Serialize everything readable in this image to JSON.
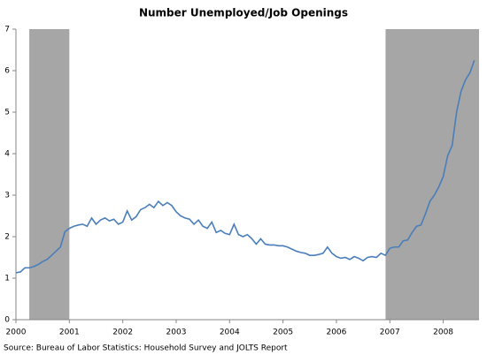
{
  "chart_data": {
    "type": "line",
    "title": "Number Unemployed/Job Openings",
    "source": "Source: Bureau of Labor Statistics:  Household Survey and JOLTS Report",
    "x": [
      2000,
      2000.083,
      2000.167,
      2000.25,
      2000.333,
      2000.417,
      2000.5,
      2000.583,
      2000.667,
      2000.75,
      2000.833,
      2000.917,
      2001,
      2001.083,
      2001.167,
      2001.25,
      2001.333,
      2001.417,
      2001.5,
      2001.583,
      2001.667,
      2001.75,
      2001.833,
      2001.917,
      2002,
      2002.083,
      2002.167,
      2002.25,
      2002.333,
      2002.417,
      2002.5,
      2002.583,
      2002.667,
      2002.75,
      2002.833,
      2002.917,
      2003,
      2003.083,
      2003.167,
      2003.25,
      2003.333,
      2003.417,
      2003.5,
      2003.583,
      2003.667,
      2003.75,
      2003.833,
      2003.917,
      2004,
      2004.083,
      2004.167,
      2004.25,
      2004.333,
      2004.417,
      2004.5,
      2004.583,
      2004.667,
      2004.75,
      2004.833,
      2004.917,
      2005,
      2005.083,
      2005.167,
      2005.25,
      2005.333,
      2005.417,
      2005.5,
      2005.583,
      2005.667,
      2005.75,
      2005.833,
      2005.917,
      2006,
      2006.083,
      2006.167,
      2006.25,
      2006.333,
      2006.417,
      2006.5,
      2006.583,
      2006.667,
      2006.75,
      2006.833,
      2006.917,
      2007,
      2007.083,
      2007.167,
      2007.25,
      2007.333,
      2007.417,
      2007.5,
      2007.583,
      2007.667,
      2007.75,
      2007.833,
      2007.917,
      2008,
      2008.083,
      2008.167,
      2008.25,
      2008.333,
      2008.417,
      2008.5,
      2008.583
    ],
    "series": [
      {
        "color": "#4a7ebb",
        "values": [
          1.13,
          1.15,
          1.25,
          1.25,
          1.28,
          1.33,
          1.4,
          1.45,
          1.55,
          1.65,
          1.75,
          2.12,
          2.2,
          2.25,
          2.28,
          2.3,
          2.25,
          2.45,
          2.3,
          2.4,
          2.45,
          2.38,
          2.42,
          2.3,
          2.35,
          2.62,
          2.4,
          2.48,
          2.65,
          2.7,
          2.78,
          2.7,
          2.85,
          2.75,
          2.82,
          2.75,
          2.6,
          2.5,
          2.45,
          2.42,
          2.3,
          2.4,
          2.25,
          2.2,
          2.35,
          2.1,
          2.15,
          2.08,
          2.05,
          2.3,
          2.05,
          2.0,
          2.05,
          1.95,
          1.82,
          1.95,
          1.82,
          1.8,
          1.8,
          1.78,
          1.78,
          1.75,
          1.7,
          1.65,
          1.62,
          1.6,
          1.55,
          1.55,
          1.57,
          1.6,
          1.75,
          1.6,
          1.52,
          1.48,
          1.5,
          1.45,
          1.52,
          1.48,
          1.42,
          1.5,
          1.52,
          1.5,
          1.6,
          1.55,
          1.72,
          1.75,
          1.75,
          1.9,
          1.92,
          2.1,
          2.25,
          2.28,
          2.55,
          2.85,
          3.0,
          3.2,
          3.45,
          3.95,
          4.2,
          5.0,
          5.5,
          5.78,
          5.95,
          6.25
        ]
      }
    ],
    "shaded_regions": [
      [
        2000.25,
        2001
      ],
      [
        2006.92,
        2008.67
      ]
    ],
    "shade_color": "#a6a6a6",
    "xlim": [
      2000,
      2008.67
    ],
    "xticks": [
      2000,
      2001,
      2002,
      2003,
      2004,
      2005,
      2006,
      2007,
      2008
    ],
    "ylim": [
      0,
      7
    ],
    "yticks": [
      0,
      1,
      2,
      3,
      4,
      5,
      6,
      7
    ],
    "grid": false
  }
}
